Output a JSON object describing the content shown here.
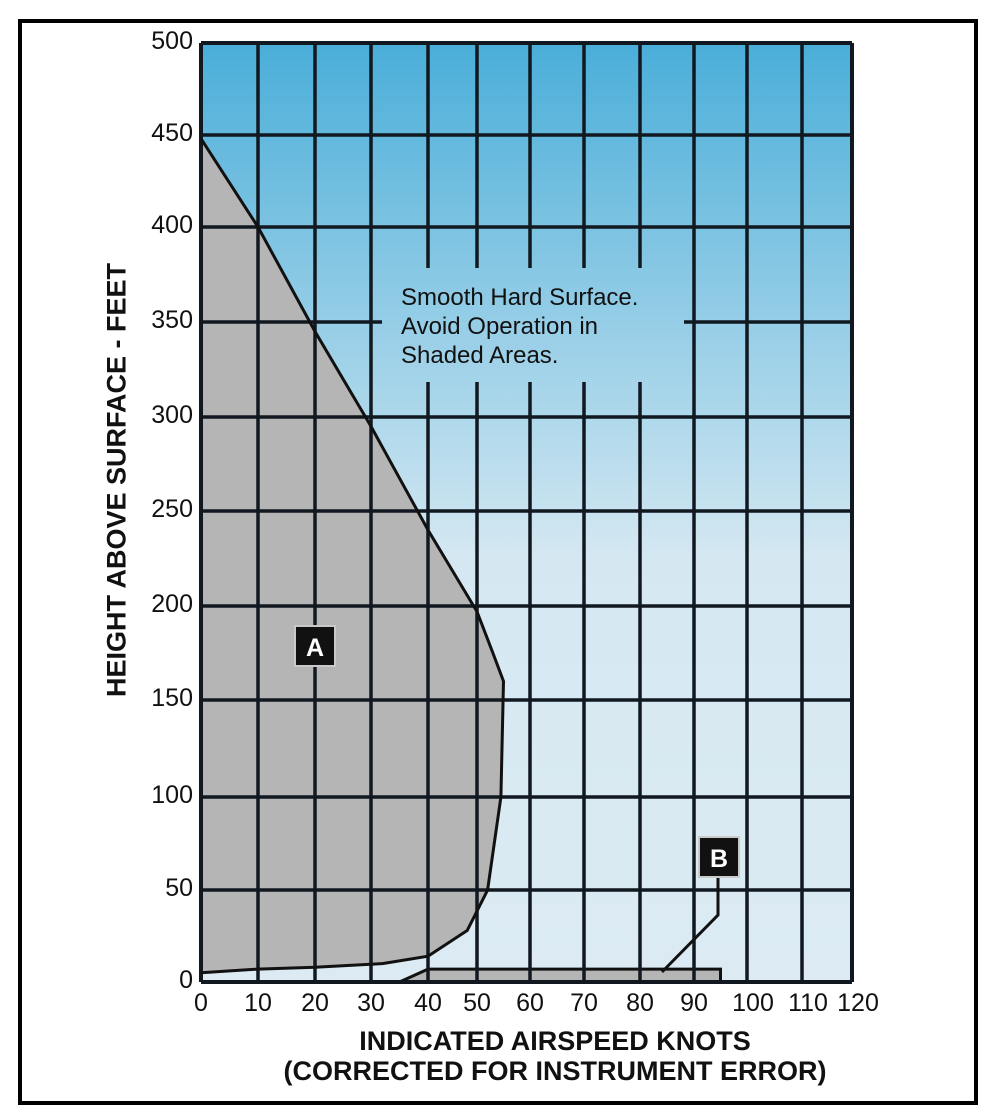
{
  "chart_data": {
    "type": "area",
    "title": "",
    "xlabel": "INDICATED AIRSPEED KNOTS (CORRECTED FOR INSTRUMENT ERROR)",
    "xlabel_lines": [
      "INDICATED AIRSPEED KNOTS",
      "(CORRECTED FOR INSTRUMENT ERROR)"
    ],
    "ylabel": "HEIGHT ABOVE SURFACE - FEET",
    "xlim": [
      0,
      120
    ],
    "ylim": [
      0,
      500
    ],
    "x_ticks": [
      "0",
      "10",
      "20",
      "30",
      "40",
      "50",
      "60",
      "70",
      "80",
      "90",
      "100",
      "110",
      "120"
    ],
    "y_ticks": [
      "500",
      "450",
      "400",
      "350",
      "300",
      "250",
      "200",
      "150",
      "100",
      "50",
      "0"
    ],
    "grid": true,
    "annotation": [
      "Smooth Hard Surface.",
      "Avoid Operation in",
      "Shaded Areas."
    ],
    "regions": [
      {
        "name": "A",
        "label": "A",
        "description": "Avoid region (low speed / height-velocity curve)",
        "boundary": [
          {
            "x": 0,
            "y": 448
          },
          {
            "x": 10,
            "y": 400
          },
          {
            "x": 20,
            "y": 345
          },
          {
            "x": 30,
            "y": 295
          },
          {
            "x": 40,
            "y": 240
          },
          {
            "x": 50,
            "y": 197
          },
          {
            "x": 53,
            "y": 175
          },
          {
            "x": 55,
            "y": 160
          },
          {
            "x": 54.5,
            "y": 100
          },
          {
            "x": 52,
            "y": 50
          },
          {
            "x": 48,
            "y": 28
          },
          {
            "x": 40,
            "y": 14
          },
          {
            "x": 32,
            "y": 10
          },
          {
            "x": 20,
            "y": 8
          },
          {
            "x": 10,
            "y": 7
          },
          {
            "x": 0,
            "y": 5
          }
        ]
      },
      {
        "name": "B",
        "label": "B",
        "description": "Avoid region (high speed, low height)",
        "boundary": [
          {
            "x": 35,
            "y": 0
          },
          {
            "x": 40,
            "y": 7
          },
          {
            "x": 95,
            "y": 7
          },
          {
            "x": 95,
            "y": 0
          }
        ]
      }
    ],
    "colors": {
      "sky_top": "#4aaed9",
      "sky_bottom": "#dbeaf3",
      "shaded": "#b5b5b5",
      "grid": "#111820",
      "tag_bg": "#111111"
    }
  },
  "labels": {
    "region_a": "A",
    "region_b": "B"
  }
}
